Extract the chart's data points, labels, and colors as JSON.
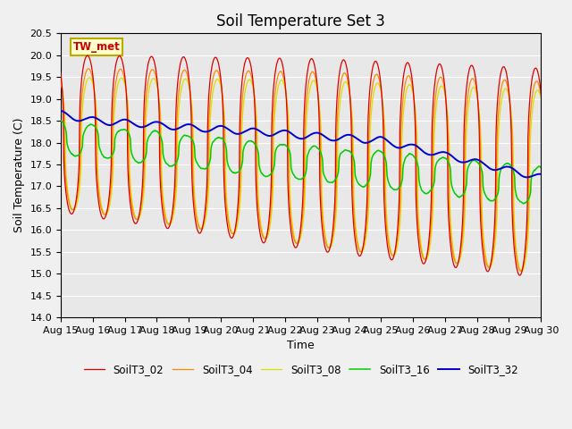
{
  "title": "Soil Temperature Set 3",
  "xlabel": "Time",
  "ylabel": "Soil Temperature (C)",
  "ylim": [
    14.0,
    20.5
  ],
  "x_tick_labels": [
    "Aug 15",
    "Aug 16",
    "Aug 17",
    "Aug 18",
    "Aug 19",
    "Aug 20",
    "Aug 21",
    "Aug 22",
    "Aug 23",
    "Aug 24",
    "Aug 25",
    "Aug 26",
    "Aug 27",
    "Aug 28",
    "Aug 29",
    "Aug 30"
  ],
  "annotation_text": "TW_met",
  "annotation_color": "#cc0000",
  "annotation_bg": "#ffffcc",
  "annotation_border": "#bbaa00",
  "colors": {
    "SoilT3_02": "#dd0000",
    "SoilT3_04": "#ff8800",
    "SoilT3_08": "#dddd00",
    "SoilT3_16": "#00cc00",
    "SoilT3_32": "#0000cc"
  },
  "bg_color": "#e8e8e8",
  "plot_bg": "#f0f0f0",
  "grid_color": "#ffffff",
  "title_fontsize": 12,
  "label_fontsize": 9,
  "tick_fontsize": 8
}
